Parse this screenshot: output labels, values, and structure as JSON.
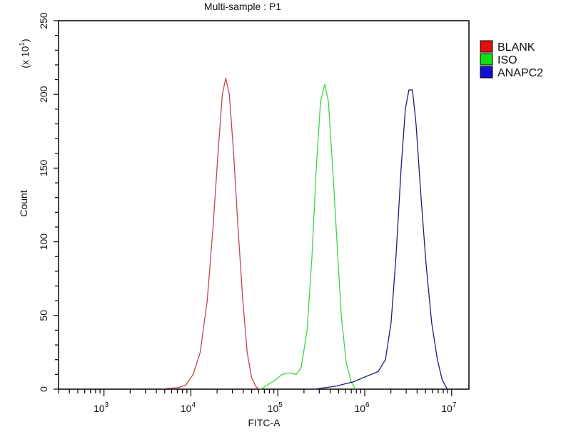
{
  "chart_data": {
    "type": "line",
    "title": "Multi-sample : P1",
    "xlabel": "FITC-A",
    "ylabel": "Count",
    "y_multiplier_label": "(x 10",
    "y_multiplier_exp": "1",
    "x_scale": "log",
    "xlim": [
      300,
      15800000
    ],
    "ylim": [
      0,
      250
    ],
    "x_ticks": [
      {
        "base": "10",
        "exp": "3",
        "value": 1000
      },
      {
        "base": "10",
        "exp": "4",
        "value": 10000
      },
      {
        "base": "10",
        "exp": "5",
        "value": 100000
      },
      {
        "base": "10",
        "exp": "6",
        "value": 1000000
      },
      {
        "base": "10",
        "exp": "7",
        "value": 10000000
      }
    ],
    "y_ticks": [
      "0",
      "50",
      "100",
      "150",
      "200",
      "250"
    ],
    "grid": false,
    "legend_position": "right",
    "series": [
      {
        "name": "BLANK",
        "color": "#c0474e",
        "legend_color": "#e01010",
        "x": [
          5200,
          7300,
          8800,
          10600,
          12800,
          15400,
          18000,
          20500,
          23000,
          25200,
          27700,
          31000,
          34800,
          39600,
          44400,
          49800,
          55700,
          60100
        ],
        "y": [
          0.5,
          1,
          3,
          10,
          25,
          60,
          110,
          160,
          200,
          211,
          200,
          160,
          110,
          60,
          25,
          8,
          2,
          0
        ]
      },
      {
        "name": "ISO",
        "color": "#3fd63f",
        "legend_color": "#10e010",
        "x": [
          63500,
          76700,
          92700,
          112000,
          135000,
          163000,
          186000,
          217000,
          247000,
          277000,
          310000,
          347000,
          382000,
          428000,
          479000,
          537000,
          612000,
          698000,
          782000
        ],
        "y": [
          0,
          3,
          6,
          10,
          11,
          10,
          15,
          40,
          90,
          150,
          195,
          207,
          195,
          150,
          100,
          50,
          18,
          5,
          0
        ]
      },
      {
        "name": "ANAPC2",
        "color": "#1e1e7a",
        "legend_color": "#1010d0",
        "x": [
          262000,
          461000,
          740000,
          1080000,
          1430000,
          1730000,
          2010000,
          2290000,
          2620000,
          2930000,
          3220000,
          3540000,
          3890000,
          4440000,
          5070000,
          5890000,
          6850000,
          7810000,
          8930000
        ],
        "y": [
          0,
          2,
          5,
          9,
          12,
          20,
          45,
          90,
          150,
          190,
          203,
          203,
          180,
          130,
          85,
          45,
          20,
          6,
          0
        ]
      }
    ]
  }
}
